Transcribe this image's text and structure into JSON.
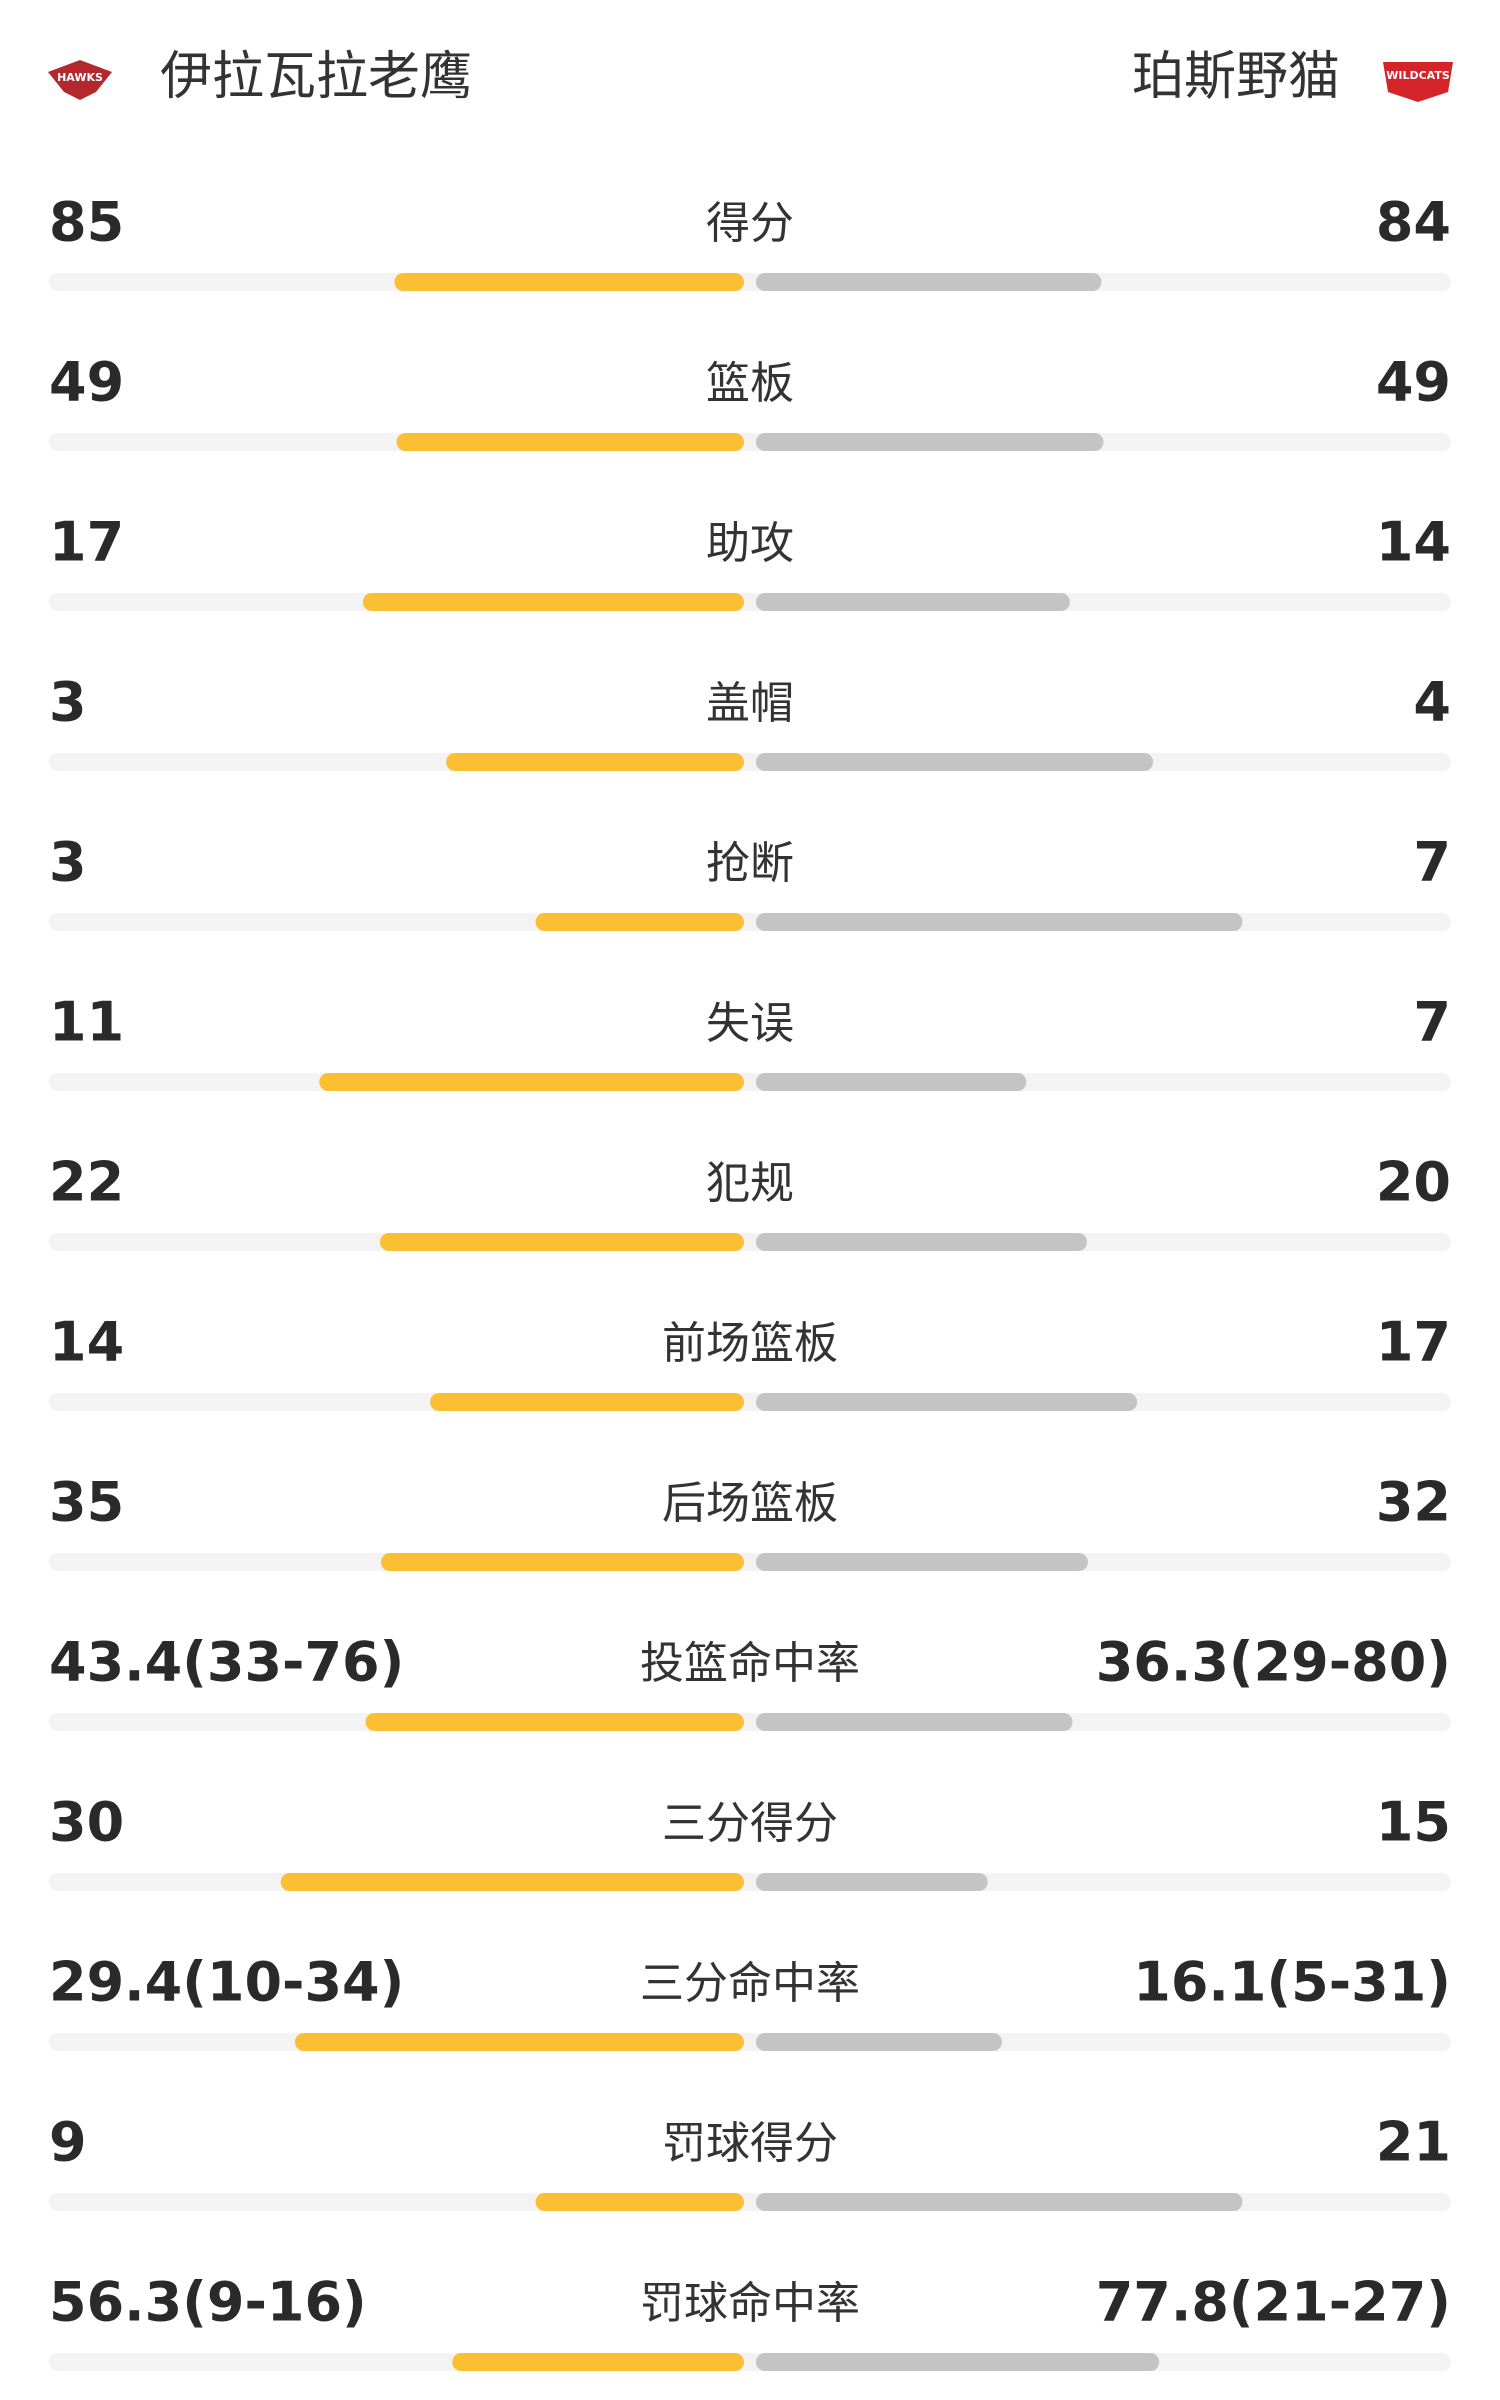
{
  "header": {
    "home": {
      "name": "伊拉瓦拉老鹰",
      "logo": "HAWKS"
    },
    "away": {
      "name": "珀斯野猫",
      "logo": "WILDCATS"
    }
  },
  "stats": [
    {
      "label": "得分",
      "home": 85,
      "away": 84
    },
    {
      "label": "篮板",
      "home": 49,
      "away": 49
    },
    {
      "label": "助攻",
      "home": 17,
      "away": 14
    },
    {
      "label": "盖帽",
      "home": 3,
      "away": 4
    },
    {
      "label": "抢断",
      "home": 3,
      "away": 7
    },
    {
      "label": "失误",
      "home": 11,
      "away": 7
    },
    {
      "label": "犯规",
      "home": 22,
      "away": 20
    },
    {
      "label": "前场篮板",
      "home": 14,
      "away": 17
    },
    {
      "label": "后场篮板",
      "home": 35,
      "away": 32
    },
    {
      "label": "投篮命中率",
      "home": {
        "value": 43.4,
        "label": "43.4(33-76)"
      },
      "away": {
        "value": 36.3,
        "label": "36.3(29-80)"
      }
    },
    {
      "label": "三分得分",
      "home": 30,
      "away": 15
    },
    {
      "label": "三分命中率",
      "home": {
        "value": 29.4,
        "label": "29.4(10-34)"
      },
      "away": {
        "value": 16.1,
        "label": "16.1(5-31)"
      }
    },
    {
      "label": "罚球得分",
      "home": 9,
      "away": 21
    },
    {
      "label": "罚球命中率",
      "home": {
        "value": 56.3,
        "label": "56.3(9-16)"
      },
      "away": {
        "value": 77.8,
        "label": "77.8(21-27)"
      }
    }
  ]
}
